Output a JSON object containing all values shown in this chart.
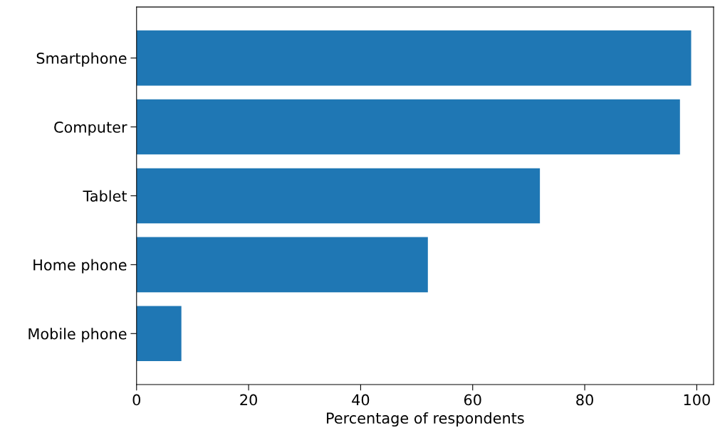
{
  "chart_data": {
    "type": "bar",
    "orientation": "horizontal",
    "xlabel": "Percentage of respondents",
    "categories": [
      "Smartphone",
      "Computer",
      "Tablet",
      "Home phone",
      "Mobile phone"
    ],
    "values": [
      99,
      97,
      72,
      52,
      8
    ],
    "color": "#1f77b4",
    "xlim": [
      0,
      103
    ],
    "xticks": [
      0,
      20,
      40,
      60,
      80,
      100
    ],
    "grid": false,
    "legend": false
  }
}
